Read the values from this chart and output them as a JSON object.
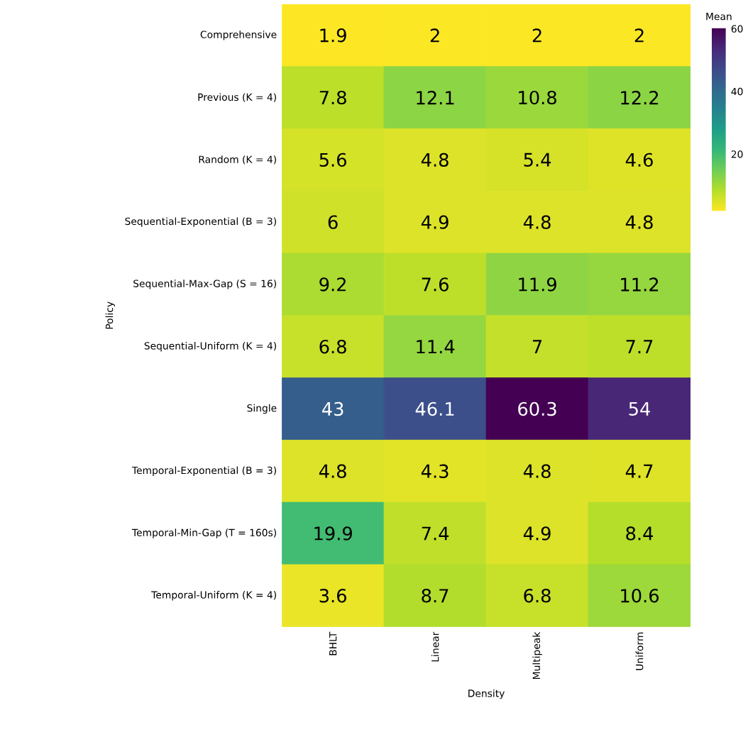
{
  "chart_data": {
    "type": "heatmap",
    "xlabel": "Density",
    "ylabel": "Policy",
    "clabel": "Mean",
    "categories": [
      "BHLT",
      "Linear",
      "Multipeak",
      "Uniform"
    ],
    "y_categories": [
      "Comprehensive",
      "Previous (K = 4)",
      "Random (K = 4)",
      "Sequential-Exponential (B = 3)",
      "Sequential-Max-Gap (S = 16)",
      "Sequential-Uniform (K = 4)",
      "Single",
      "Temporal-Exponential (B = 3)",
      "Temporal-Min-Gap (T = 160s)",
      "Temporal-Uniform (K = 4)"
    ],
    "cells": [
      [
        1.9,
        2,
        2,
        2
      ],
      [
        7.8,
        12.1,
        10.8,
        12.2
      ],
      [
        5.6,
        4.8,
        5.4,
        4.6
      ],
      [
        6,
        4.9,
        4.8,
        4.8
      ],
      [
        9.2,
        7.6,
        11.9,
        11.2
      ],
      [
        6.8,
        11.4,
        7,
        7.7
      ],
      [
        43,
        46.1,
        60.3,
        54
      ],
      [
        4.8,
        4.3,
        4.8,
        4.7
      ],
      [
        19.9,
        7.4,
        4.9,
        8.4
      ],
      [
        3.6,
        8.7,
        6.8,
        10.6
      ]
    ],
    "clim": [
      1.9,
      60.3
    ],
    "cticks": [
      20,
      40,
      60
    ],
    "data_labels": true
  }
}
